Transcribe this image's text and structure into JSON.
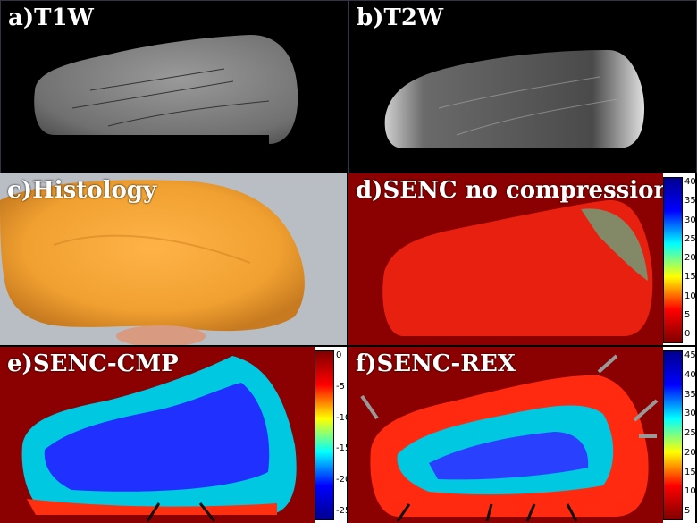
{
  "panels": {
    "a": {
      "label": "a)T1W"
    },
    "b": {
      "label": "b)T2W"
    },
    "c": {
      "label": "c)Histology"
    },
    "d": {
      "label": "d)SENC no compression",
      "colorbar_ticks": [
        "40",
        "35",
        "30",
        "25",
        "20",
        "15",
        "10",
        "5",
        "0"
      ]
    },
    "e": {
      "label": "e)SENC-CMP",
      "colorbar_ticks": [
        "0",
        "-5",
        "-10",
        "-15",
        "-20",
        "-25"
      ]
    },
    "f": {
      "label": "f)SENC-REX",
      "colorbar_ticks": [
        "45",
        "40",
        "35",
        "30",
        "25",
        "20",
        "15",
        "10",
        "5"
      ]
    }
  },
  "colors": {
    "background": "#000000",
    "map_background": "#8b0000",
    "colormap": [
      "#00008f",
      "#0000ff",
      "#00ffff",
      "#ffff00",
      "#ff0000",
      "#800000"
    ]
  }
}
